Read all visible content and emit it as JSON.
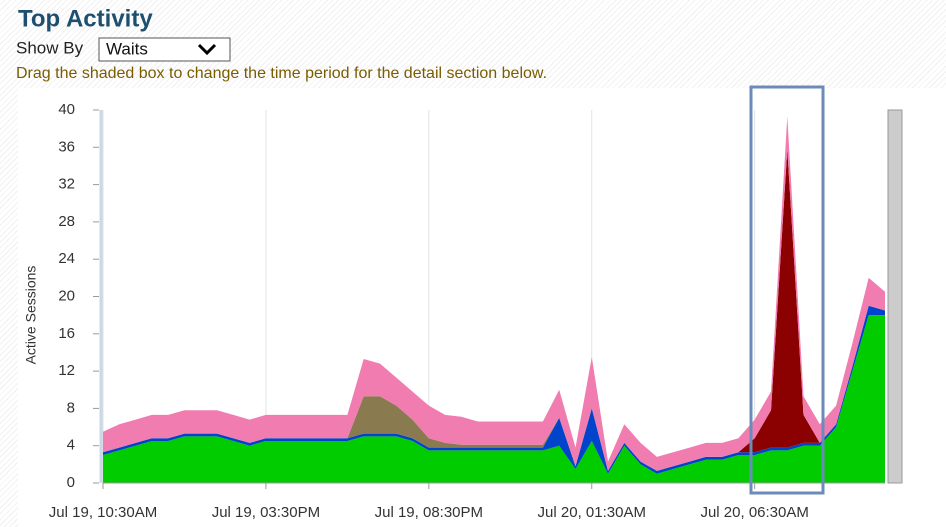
{
  "header": {
    "title": "Top Activity",
    "show_by_label": "Show By",
    "show_by_value": "Waits",
    "instruction": "Drag the shaded box to change the time period for the detail section below."
  },
  "chart_data": {
    "type": "stacked-area",
    "ylabel": "Active Sessions",
    "categories": [
      "Jul 19, 10:30AM",
      null,
      null,
      null,
      null,
      null,
      null,
      null,
      null,
      null,
      "Jul 19, 03:30PM",
      null,
      null,
      null,
      null,
      null,
      null,
      null,
      null,
      null,
      "Jul 19, 08:30PM",
      null,
      null,
      null,
      null,
      null,
      null,
      null,
      null,
      null,
      "Jul 20, 01:30AM",
      null,
      null,
      null,
      null,
      null,
      null,
      null,
      null,
      null,
      "Jul 20, 06:30AM",
      null,
      null,
      null,
      null,
      null,
      null,
      null,
      null
    ],
    "ylim": [
      0,
      40
    ],
    "yticks": [
      0,
      4,
      8,
      12,
      16,
      20,
      24,
      28,
      32,
      36,
      40
    ],
    "grid": true,
    "series": [
      {
        "color": "#00cc00",
        "values": [
          3,
          3.5,
          4,
          4.5,
          4.5,
          5,
          5,
          5,
          4.5,
          4,
          4.5,
          4.5,
          4.5,
          4.5,
          4.5,
          4.5,
          5,
          5,
          5,
          4.5,
          3.5,
          3.5,
          3.5,
          3.5,
          3.5,
          3.5,
          3.5,
          3.5,
          4,
          1.5,
          4.5,
          1,
          4,
          2,
          1,
          1.5,
          2,
          2.5,
          2.5,
          3,
          3,
          3.5,
          3.5,
          4,
          4,
          6,
          12,
          18,
          18
        ]
      },
      {
        "color": "#0044cc",
        "values": [
          0.3,
          0.3,
          0.3,
          0.3,
          0.3,
          0.3,
          0.3,
          0.3,
          0.3,
          0.3,
          0.3,
          0.3,
          0.3,
          0.3,
          0.3,
          0.3,
          0.3,
          0.3,
          0.3,
          0.3,
          0.3,
          0.3,
          0.3,
          0.3,
          0.3,
          0.3,
          0.3,
          0.3,
          3,
          0.3,
          3.5,
          0.3,
          0.3,
          0.3,
          0.3,
          0.3,
          0.3,
          0.3,
          0.3,
          0.3,
          0.3,
          0.3,
          0.3,
          0.3,
          0.3,
          0.3,
          0.5,
          1,
          0.5
        ]
      },
      {
        "color": "#8a7a50",
        "values": [
          0,
          0,
          0,
          0,
          0,
          0,
          0,
          0,
          0,
          0,
          0,
          0,
          0,
          0,
          0,
          0,
          4,
          4,
          3,
          2,
          1,
          0.5,
          0.3,
          0.3,
          0.3,
          0.3,
          0.3,
          0.3,
          0,
          0,
          0,
          0,
          0,
          0,
          0,
          0,
          0,
          0,
          0,
          0,
          0,
          0,
          0,
          0,
          0,
          0,
          0,
          0,
          0
        ]
      },
      {
        "color": "#8b0000",
        "values": [
          0,
          0,
          0,
          0,
          0,
          0,
          0,
          0,
          0,
          0,
          0,
          0,
          0,
          0,
          0,
          0,
          0,
          0,
          0,
          0,
          0,
          0,
          0,
          0,
          0,
          0,
          0,
          0,
          0,
          0,
          0,
          0,
          0,
          0,
          0,
          0,
          0,
          0,
          0,
          0,
          1.5,
          4,
          32,
          3,
          0,
          0,
          0,
          0,
          0
        ]
      },
      {
        "color": "#f07cb0",
        "values": [
          2.2,
          2.5,
          2.5,
          2.5,
          2.5,
          2.5,
          2.5,
          2.5,
          2.5,
          2.5,
          2.5,
          2.5,
          2.5,
          2.5,
          2.5,
          2.5,
          4,
          3.5,
          3,
          3,
          3.5,
          3,
          3,
          2.5,
          2.5,
          2.5,
          2.5,
          2.5,
          3,
          2,
          5.5,
          1,
          2,
          2,
          1.5,
          1.5,
          1.5,
          1.5,
          1.5,
          1.5,
          2,
          2,
          3.5,
          2,
          2,
          2,
          2.5,
          3,
          2
        ]
      }
    ]
  }
}
